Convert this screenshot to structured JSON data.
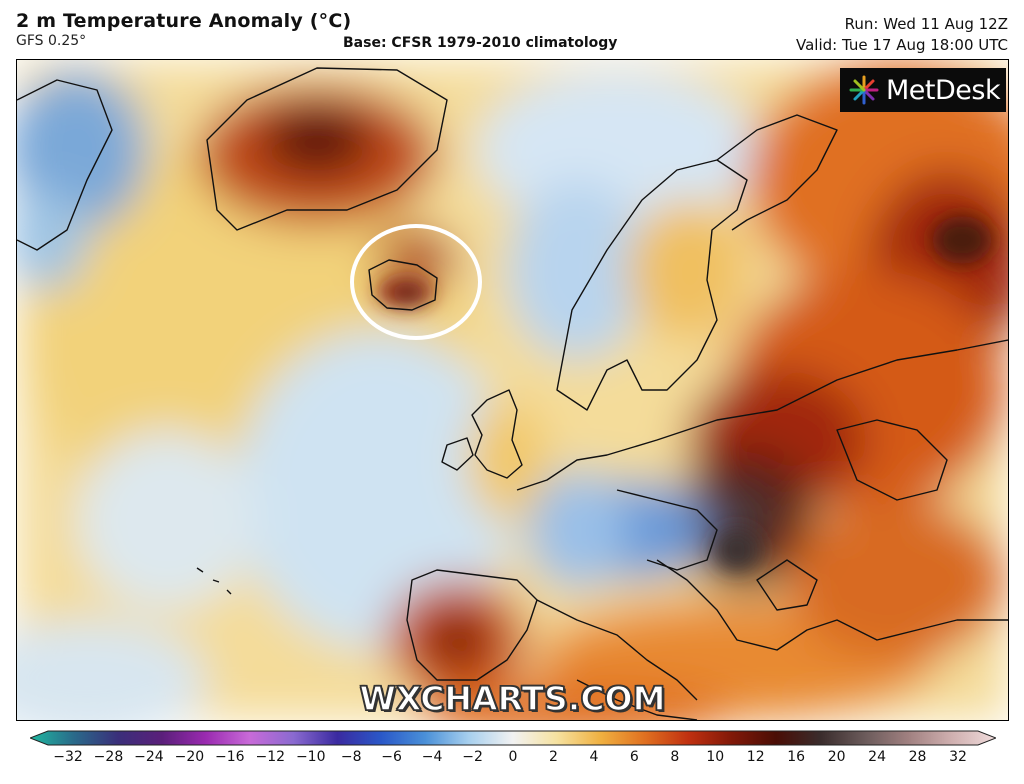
{
  "header": {
    "title": "2 m Temperature Anomaly (°C)",
    "model": "GFS 0.25°",
    "base": "Base: CFSR 1979-2010 climatology",
    "run": "Run: Wed 11 Aug 12Z",
    "valid": "Valid: Tue 17 Aug 18:00 UTC"
  },
  "logo": {
    "text": "MetDesk",
    "icon": "starburst-logo-icon"
  },
  "watermark": "WXCHARTS.COM",
  "highlight": {
    "region": "Iceland",
    "marker": "white-ellipse"
  },
  "legend": {
    "unit": "°C",
    "ticks": [
      "−32",
      "−28",
      "−24",
      "−20",
      "−16",
      "−12",
      "−10",
      "−8",
      "−6",
      "−4",
      "−2",
      "0",
      "2",
      "4",
      "6",
      "8",
      "10",
      "12",
      "16",
      "20",
      "24",
      "28",
      "32"
    ],
    "colors": [
      "#1fb8a0",
      "#2a6a8a",
      "#3a2f7a",
      "#5a1f7a",
      "#9a2ab0",
      "#c86ad8",
      "#8a6ad0",
      "#3a2aa0",
      "#2a58c8",
      "#4a90d8",
      "#a8d0ee",
      "#f2f2f2",
      "#f6e2a0",
      "#f0b040",
      "#e07020",
      "#c03010",
      "#801808",
      "#4a0e06",
      "#3a2c2c",
      "#6a5a5a",
      "#a08080",
      "#d0b0b0",
      "#f0dcdc"
    ]
  }
}
